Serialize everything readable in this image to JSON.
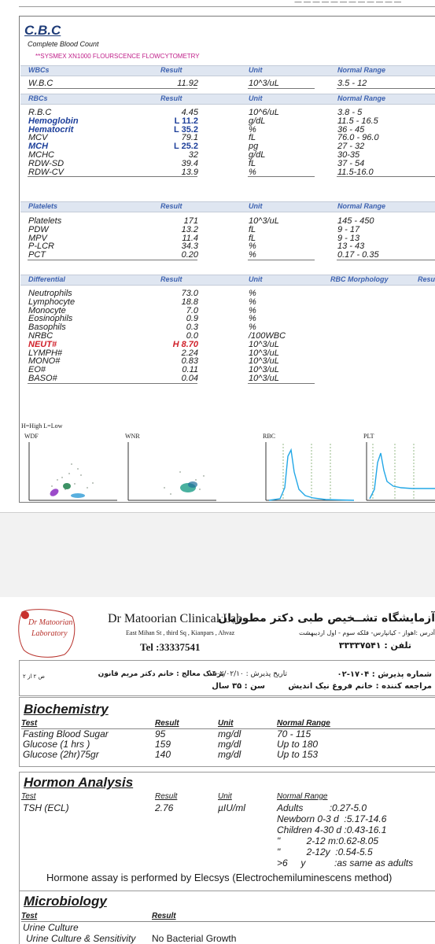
{
  "cbc": {
    "title": "C.B.C",
    "subtitle": "Complete Blood Count",
    "analyzer": "**SYSMEX XN1000 FLOURSCENCE FLOWCYTOMETRY",
    "groups": {
      "wbcs": {
        "label": "WBCs",
        "result": "Result",
        "unit": "Unit",
        "range": "Normal Range"
      },
      "rbcs": {
        "label": "RBCs",
        "result": "Result",
        "unit": "Unit",
        "range": "Normal Range"
      },
      "platelets": {
        "label": "Platelets",
        "result": "Result",
        "unit": "Unit",
        "range": "Normal Range"
      },
      "differential": {
        "label": "Differential",
        "result": "Result",
        "unit": "Unit",
        "range": "RBC Morphology",
        "extra": "Resu"
      }
    },
    "wbc_rows": [
      {
        "test": "W.B.C",
        "result": "11.92",
        "unit": "10^3/uL",
        "range": "3.5 - 12"
      }
    ],
    "rbc_rows": [
      {
        "test": "R.B.C",
        "result": "4.45",
        "unit": "10^6/uL",
        "range": "3.8 - 5"
      },
      {
        "test": "Hemoglobin",
        "result": "L 11.2",
        "unit": "g/dL",
        "range": "11.5 - 16.5"
      },
      {
        "test": "Hematocrit",
        "result": "L 35.2",
        "unit": "%",
        "range": "36 - 45"
      },
      {
        "test": "MCV",
        "result": "79.1",
        "unit": "fL",
        "range": "76.0 - 96.0"
      },
      {
        "test": "MCH",
        "result": "L 25.2",
        "unit": "pg",
        "range": "27 - 32"
      },
      {
        "test": "MCHC",
        "result": "32",
        "unit": "g/dL",
        "range": "30-35"
      },
      {
        "test": "RDW-SD",
        "result": "39.4",
        "unit": "fL",
        "range": "37 - 54"
      },
      {
        "test": "RDW-CV",
        "result": "13.9",
        "unit": "%",
        "range": "11.5-16.0"
      }
    ],
    "platelet_rows": [
      {
        "test": "Platelets",
        "result": "171",
        "unit": "10^3/uL",
        "range": "145 - 450"
      },
      {
        "test": "PDW",
        "result": "13.2",
        "unit": "fL",
        "range": "9 - 17"
      },
      {
        "test": "MPV",
        "result": "11.4",
        "unit": "fL",
        "range": "9 - 13"
      },
      {
        "test": "P-LCR",
        "result": "34.3",
        "unit": "%",
        "range": "13 - 43"
      },
      {
        "test": "PCT",
        "result": "0.20",
        "unit": "%",
        "range": "0.17 - 0.35"
      }
    ],
    "diff_rows": [
      {
        "test": "Neutrophils",
        "result": "73.0",
        "unit": "%"
      },
      {
        "test": "Lymphocyte",
        "result": "18.8",
        "unit": "%"
      },
      {
        "test": "Monocyte",
        "result": "7.0",
        "unit": "%"
      },
      {
        "test": "Eosinophils",
        "result": "0.9",
        "unit": "%"
      },
      {
        "test": "Basophils",
        "result": "0.3",
        "unit": "%"
      },
      {
        "test": "NRBC",
        "result": "0.0",
        "unit": "/100WBC"
      },
      {
        "test": "NEUT#",
        "result": "H 8.70",
        "unit": "10^3/uL"
      },
      {
        "test": "LYMPH#",
        "result": "2.24",
        "unit": "10^3/uL"
      },
      {
        "test": "MONO#",
        "result": "0.83",
        "unit": "10^3/uL"
      },
      {
        "test": "EO#",
        "result": "0.11",
        "unit": "10^3/uL"
      },
      {
        "test": "BASO#",
        "result": "0.04",
        "unit": "10^3/uL"
      }
    ],
    "legend": "H=High   L=Low",
    "scattergrams": [
      "WDF",
      "WNR",
      "RBC",
      "PLT"
    ]
  },
  "lab": {
    "name_en": "Dr Matoorian Clinical Lab",
    "address_en": "East Mihan St , third Sq , Kianpars , Ahvaz",
    "tel_en": "Tel :33337541",
    "name_fa": "آزمایشگاه تشــخیص طبی دکتر مطوریان",
    "address_fa": "آدرس :اهواز - کیانپارس- فلکه سوم - اول اردیبهشت",
    "tel_fa": "تلفن : ۳۳۳۳۷۵۴۱",
    "logo_line1": "Dr Matoorian",
    "logo_line2": "Laboratory"
  },
  "patient": {
    "admission_no": "شماره پذیرش : ۱۷۰۴-۰۲",
    "patient_name": "مراجعه کننده : خانم فروغ نیک اندیش",
    "admission_date": "تاریخ پذیرش : ۱۴۰۲/۰۲/۱۰",
    "doctor": "پزشک معالج : خانم دکتر مریم قانون",
    "age": "سن : ۳۵ سال",
    "page": "ص ۲ از ۲"
  },
  "biochemistry": {
    "title": "Biochemistry",
    "headers": {
      "test": "Test",
      "result": "Result",
      "unit": "Unit",
      "range": "Normal Range"
    },
    "rows": [
      {
        "test": "Fasting Blood Sugar",
        "result": "95",
        "unit": "mg/dl",
        "range": "70 - 115"
      },
      {
        "test": "Glucose (1 hrs )",
        "result": "159",
        "unit": "mg/dl",
        "range": "Up to 180"
      },
      {
        "test": "Glucose (2hr)75gr",
        "result": "140",
        "unit": "mg/dl",
        "range": "Up to 153"
      }
    ]
  },
  "hormone": {
    "title": "Hormon Analysis",
    "headers": {
      "test": "Test",
      "result": "Result",
      "unit": "Unit",
      "range": "Normal Range"
    },
    "row": {
      "test": "TSH (ECL)",
      "result": "2.76",
      "unit": "µIU/ml"
    },
    "ranges": [
      "Adults          :0.27-5.0",
      "Newborn 0-3 d  :5.17-14.6",
      "Children 4-30 d :0.43-16.1",
      "\"          2-12 m:0.62-8.05",
      "\"          2-12y  :0.54-5.5",
      ">6     y           :as same as adults"
    ],
    "note": "Hormone assay is performed  by Elecsys (Electrochemiluminescens method)"
  },
  "microbiology": {
    "title": "Microbiology",
    "headers": {
      "test": "Test",
      "result": "Result"
    },
    "rows": [
      {
        "test": "Urine Culture",
        "result": ""
      },
      {
        "test": "Urine Culture & Sensitivity",
        "result": "No Bacterial Growth"
      }
    ]
  },
  "colors": {
    "header_blue": "#3d62b0",
    "flag_blue": "#1d3f9a",
    "flag_red": "#d0202a",
    "analyzer_pink": "#c0208a"
  }
}
